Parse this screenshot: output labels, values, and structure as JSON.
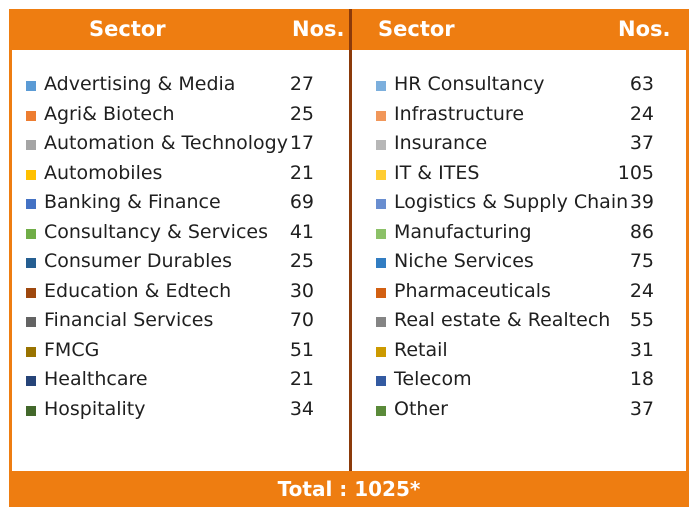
{
  "headers": {
    "left_sector": "Sector",
    "left_nos": "Nos.",
    "right_sector": "Sector",
    "right_nos": "Nos."
  },
  "left": [
    {
      "name": "Advertising & Media",
      "nos": "27",
      "color": "#5b9bd5"
    },
    {
      "name": "Agri& Biotech",
      "nos": "25",
      "color": "#ed7d31"
    },
    {
      "name": "Automation & Technology",
      "nos": "17",
      "color": "#a5a5a5"
    },
    {
      "name": "Automobiles",
      "nos": "21",
      "color": "#ffc000"
    },
    {
      "name": "Banking & Finance",
      "nos": "69",
      "color": "#4472c4"
    },
    {
      "name": "Consultancy & Services",
      "nos": "41",
      "color": "#70ad47"
    },
    {
      "name": "Consumer Durables",
      "nos": "25",
      "color": "#255e91"
    },
    {
      "name": "Education & Edtech",
      "nos": "30",
      "color": "#9e480e"
    },
    {
      "name": "Financial Services",
      "nos": "70",
      "color": "#636363"
    },
    {
      "name": "FMCG",
      "nos": "51",
      "color": "#997300"
    },
    {
      "name": "Healthcare",
      "nos": "21",
      "color": "#264478"
    },
    {
      "name": "Hospitality",
      "nos": "34",
      "color": "#43682b"
    }
  ],
  "right": [
    {
      "name": "HR Consultancy",
      "nos": "63",
      "color": "#7cafdd"
    },
    {
      "name": "Infrastructure",
      "nos": "24",
      "color": "#f1975a"
    },
    {
      "name": "Insurance",
      "nos": "37",
      "color": "#b7b7b7"
    },
    {
      "name": "IT & ITES",
      "nos": "105",
      "color": "#ffcd33"
    },
    {
      "name": "Logistics & Supply Chain",
      "nos": "39",
      "color": "#698ed0"
    },
    {
      "name": "Manufacturing",
      "nos": "86",
      "color": "#8cc168"
    },
    {
      "name": "Niche Services",
      "nos": "75",
      "color": "#327dc2"
    },
    {
      "name": "Pharmaceuticals",
      "nos": "24",
      "color": "#d26012"
    },
    {
      "name": "Real estate & Realtech",
      "nos": "55",
      "color": "#848484"
    },
    {
      "name": "Retail",
      "nos": "31",
      "color": "#cc9a00"
    },
    {
      "name": "Telecom",
      "nos": "18",
      "color": "#335aa1"
    },
    {
      "name": "Other",
      "nos": "37",
      "color": "#5a8a39"
    }
  ],
  "total": "Total : 1025*"
}
